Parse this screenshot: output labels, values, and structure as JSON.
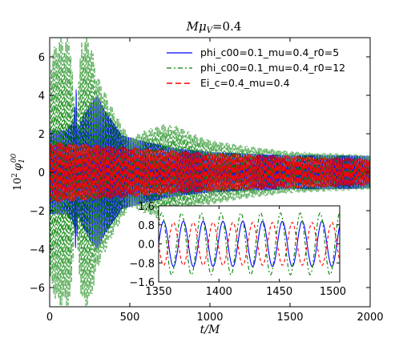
{
  "chart_data": [
    {
      "type": "line",
      "title": "Mμ_V=0.4",
      "title_parts": {
        "base": "Mμ",
        "sub": "V",
        "rest": "=0.4"
      },
      "xlabel": "t/M",
      "ylabel": "10² φ₁⁰⁰",
      "ylabel_parts": {
        "base": "10",
        "sup": "2",
        "sym": "φ",
        "sub": "1",
        "sup2": "00"
      },
      "xlim": [
        0,
        2000
      ],
      "ylim": [
        -7,
        7
      ],
      "xticks": [
        "0",
        "500",
        "1000",
        "1500",
        "2000"
      ],
      "xtick_values": [
        0,
        500,
        1000,
        1500,
        2000
      ],
      "yticks": [
        "−6",
        "−4",
        "−2",
        "0",
        "2",
        "4",
        "6"
      ],
      "ytick_values": [
        -6,
        -4,
        -2,
        0,
        2,
        4,
        6
      ],
      "grid": false,
      "legend_position": "top-right",
      "series": [
        {
          "name": "phi_c00=0.1_mu=0.4_r0=5",
          "color": "#0000ff",
          "style": "solid",
          "envelope_t": [
            0,
            100,
            150,
            165,
            175,
            200,
            250,
            300,
            350,
            450,
            600,
            800,
            1000,
            1200,
            1500,
            1700,
            2000
          ],
          "envelope_amplitude": [
            2.5,
            2.5,
            3.0,
            5.0,
            2.5,
            3.2,
            4.0,
            4.6,
            3.6,
            2.2,
            1.8,
            1.4,
            1.2,
            1.1,
            1.0,
            1.0,
            0.95
          ]
        },
        {
          "name": "phi_c00=0.1_mu=0.4_r0=12",
          "color": "#008000",
          "style": "dashdot",
          "envelope_t": [
            0,
            50,
            100,
            130,
            160,
            200,
            250,
            300,
            400,
            500,
            600,
            700,
            800,
            900,
            1000,
            1200,
            1500,
            2000
          ],
          "envelope_amplitude": [
            5.8,
            7.0,
            7.0,
            7.0,
            2.5,
            7.0,
            7.0,
            5.0,
            3.2,
            1.8,
            2.2,
            2.5,
            2.4,
            2.0,
            1.7,
            1.4,
            1.1,
            0.9
          ]
        },
        {
          "name": "Ei_c=0.4_mu=0.4",
          "color": "#ff0000",
          "style": "dashed",
          "envelope_t": [
            0,
            500,
            1000,
            1500,
            2000
          ],
          "envelope_amplitude": [
            1.6,
            1.3,
            1.0,
            0.85,
            0.7
          ]
        }
      ]
    },
    {
      "type": "line",
      "role": "inset",
      "xlim": [
        1350,
        1500
      ],
      "ylim": [
        -1.6,
        1.6
      ],
      "xticks": [
        "1350",
        "1400",
        "1450",
        "1500"
      ],
      "xtick_values": [
        1350,
        1400,
        1450,
        1500
      ],
      "yticks": [
        "−1.6",
        "−0.8",
        "0.0",
        "0.8",
        "1.6"
      ],
      "ytick_values": [
        -1.6,
        -0.8,
        0.0,
        0.8,
        1.6
      ],
      "period": 16.4,
      "series": [
        {
          "name": "phi_c00=0.1_mu=0.4_r0=5",
          "color": "#0000ff",
          "style": "solid",
          "amplitude": 0.95,
          "phase": 0.0
        },
        {
          "name": "phi_c00=0.1_mu=0.4_r0=12",
          "color": "#008000",
          "style": "dashdot",
          "amplitude": 1.3,
          "phase": 0.6
        },
        {
          "name": "Ei_c=0.4_mu=0.4",
          "color": "#ff0000",
          "style": "dashed",
          "amplitude": 0.9,
          "phase": 3.14
        }
      ]
    }
  ]
}
